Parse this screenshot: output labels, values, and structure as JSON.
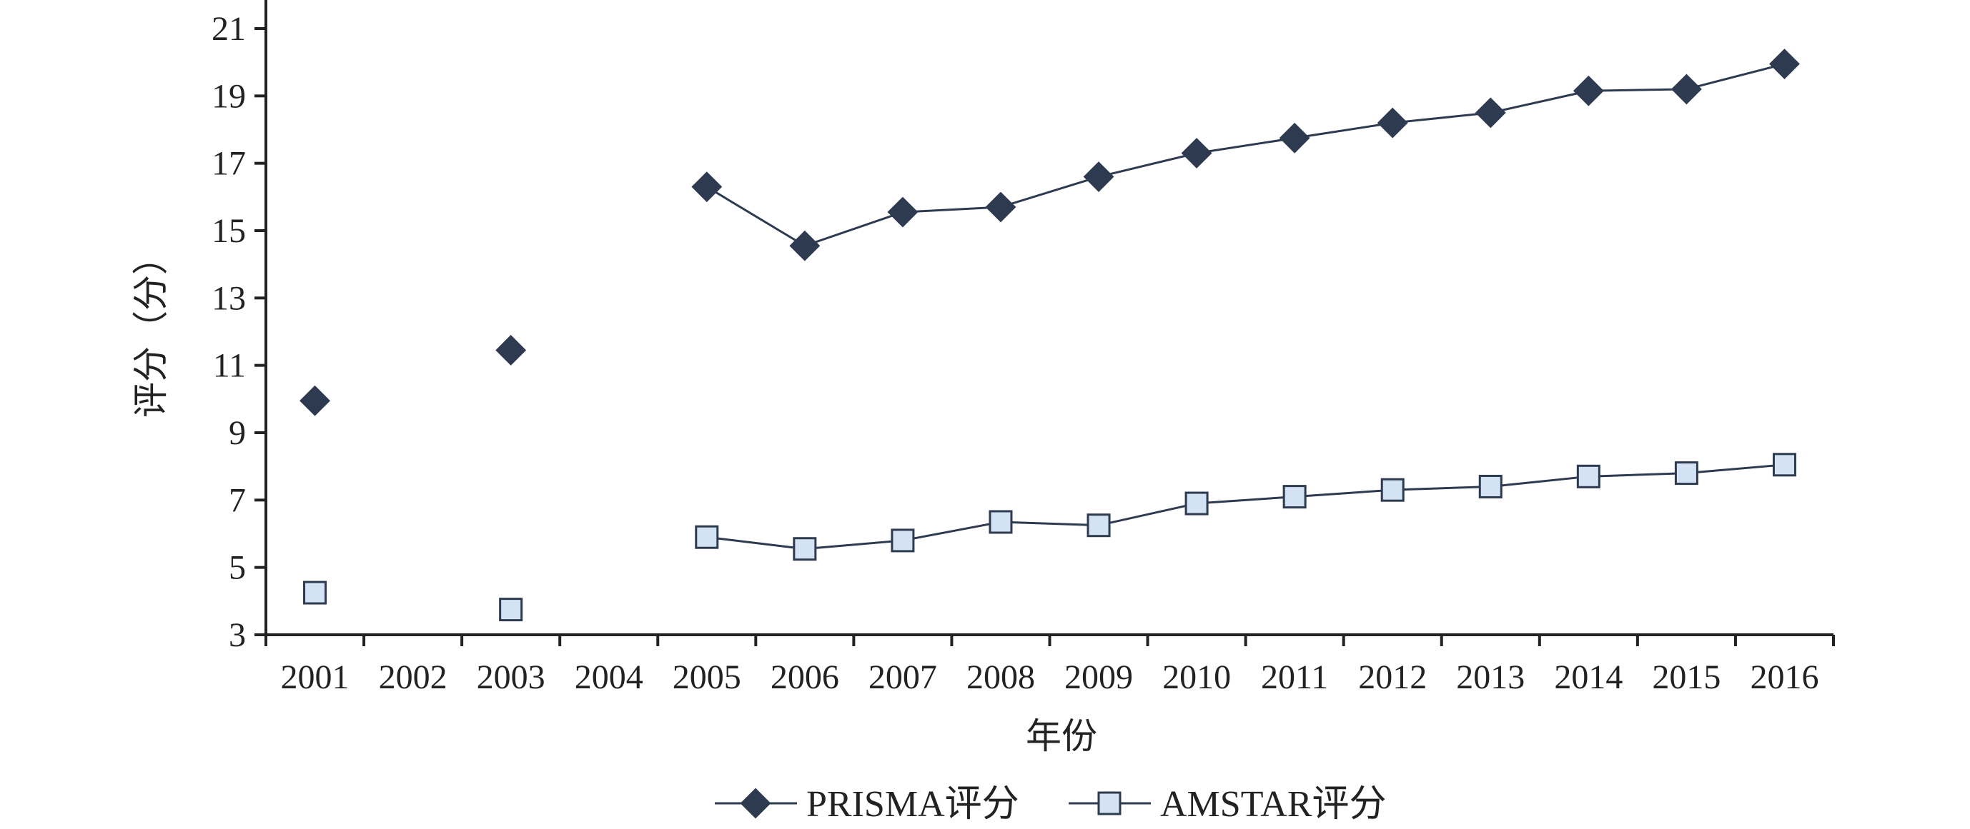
{
  "chart_data": {
    "type": "line",
    "xlabel": "年份",
    "ylabel": "评分（分）",
    "categories": [
      "2001",
      "2002",
      "2003",
      "2004",
      "2005",
      "2006",
      "2007",
      "2008",
      "2009",
      "2010",
      "2011",
      "2012",
      "2013",
      "2014",
      "2015",
      "2016"
    ],
    "ylim": [
      3,
      21
    ],
    "yticks": [
      3,
      5,
      7,
      9,
      11,
      13,
      15,
      17,
      19,
      21
    ],
    "grid": false,
    "legend_position": "bottom",
    "series": [
      {
        "name": "PRISMA评分",
        "marker": "diamond",
        "color": "#2e3a50",
        "values": [
          9.95,
          null,
          11.45,
          null,
          16.3,
          14.55,
          15.55,
          15.7,
          16.6,
          17.3,
          17.75,
          18.2,
          18.5,
          19.15,
          19.2,
          19.95
        ]
      },
      {
        "name": "AMSTAR评分",
        "marker": "square",
        "color": "#2e3a50",
        "fill": "#d3e3f3",
        "values": [
          4.25,
          null,
          3.75,
          null,
          5.9,
          5.55,
          5.8,
          6.35,
          6.25,
          6.9,
          7.1,
          7.3,
          7.4,
          7.7,
          7.8,
          8.05
        ]
      }
    ]
  }
}
